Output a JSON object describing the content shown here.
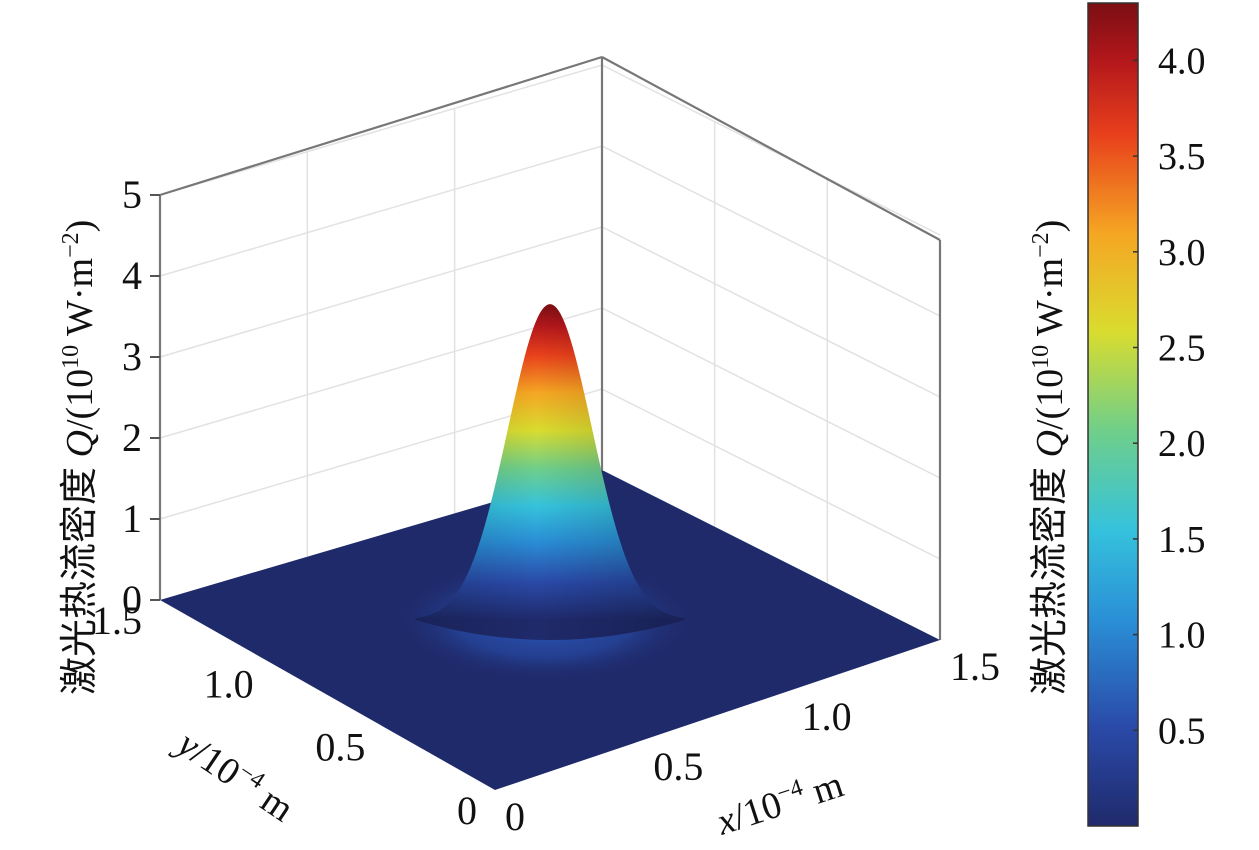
{
  "chart_data": {
    "type": "surface3d",
    "title": "",
    "zlabel": "激光热流密度 Q/(10^10 W·m^-2)",
    "zlabel_parts": {
      "cn": "激光热流密度 ",
      "sym": "Q",
      "unit_open": "/(10",
      "unit_exp": "10",
      "unit_mid": " W·m",
      "unit_exp2": "−2",
      "unit_close": ")"
    },
    "xlabel_parts": {
      "sym": "x",
      "unit": "/10",
      "exp": "−4",
      "tail": " m"
    },
    "ylabel_parts": {
      "sym": "y",
      "unit": "/10",
      "exp": "−4",
      "tail": " m"
    },
    "x_ticks": [
      "0",
      "0.5",
      "1.0",
      "1.5"
    ],
    "y_ticks": [
      "0",
      "0.5",
      "1.0",
      "1.5"
    ],
    "z_ticks": [
      "0",
      "1",
      "2",
      "3",
      "4",
      "5"
    ],
    "xlim": [
      0,
      1.5
    ],
    "ylim": [
      0,
      1.5
    ],
    "zlim": [
      0,
      5
    ],
    "peak": {
      "x": 0.75,
      "y": 0.75,
      "value": 3.9
    },
    "colorbar": {
      "label": "激光热流密度 Q/(10^10 W·m^-2)",
      "ticks": [
        "0.5",
        "1.0",
        "1.5",
        "2.0",
        "2.5",
        "3.0",
        "3.5",
        "4.0"
      ],
      "range": [
        0,
        4.3
      ],
      "colors": [
        "#1f2a6b",
        "#2a4aa8",
        "#2a8fd6",
        "#35c2dc",
        "#6fcf8a",
        "#d9dc2f",
        "#f5a623",
        "#e8401c",
        "#b3171b",
        "#7a0e12"
      ]
    },
    "grid": true
  }
}
